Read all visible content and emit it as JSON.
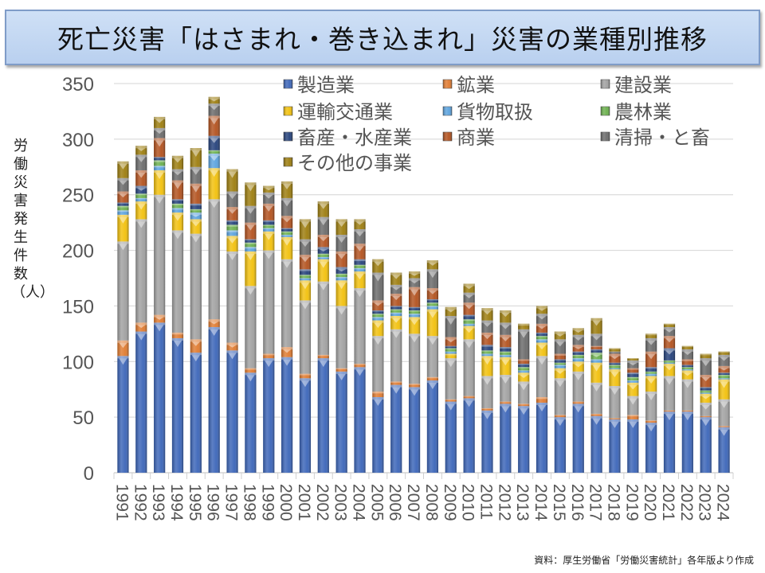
{
  "title": "死亡災害「はさまれ・巻き込まれ」災害の業種別推移",
  "source": "資料：厚生労働省「労働災害統計」各年版より作成",
  "chart_data": {
    "type": "bar",
    "stacked": true,
    "title": "死亡災害「はさまれ・巻き込まれ」災害の業種別推移",
    "xlabel": "",
    "ylabel": "労働災害発生件数（人）",
    "ylim": [
      0,
      350
    ],
    "yticks": [
      0,
      50,
      100,
      150,
      200,
      250,
      300,
      350
    ],
    "grid": true,
    "legend_position": "top-right",
    "categories": [
      "1991",
      "1992",
      "1993",
      "1994",
      "1995",
      "1996",
      "1997",
      "1998",
      "1999",
      "2000",
      "2001",
      "2002",
      "2003",
      "2004",
      "2005",
      "2006",
      "2007",
      "2008",
      "2009",
      "2010",
      "2011",
      "2012",
      "2013",
      "2014",
      "2015",
      "2016",
      "2017",
      "2018",
      "2019",
      "2020",
      "2021",
      "2022",
      "2023",
      "2024"
    ],
    "series": [
      {
        "name": "製造業",
        "color": "#3a64b8",
        "values": [
          105,
          127,
          135,
          121,
          108,
          131,
          110,
          90,
          103,
          104,
          85,
          103,
          91,
          95,
          68,
          79,
          77,
          83,
          64,
          67,
          56,
          62,
          60,
          63,
          50,
          62,
          51,
          48,
          48,
          45,
          55,
          55,
          50,
          41
        ]
      },
      {
        "name": "鉱業",
        "color": "#e07a2e",
        "values": [
          14,
          8,
          7,
          5,
          12,
          7,
          7,
          4,
          4,
          9,
          4,
          3,
          3,
          3,
          5,
          3,
          3,
          3,
          2,
          2,
          2,
          2,
          2,
          5,
          2,
          2,
          2,
          1,
          4,
          2,
          1,
          1,
          1,
          1
        ]
      },
      {
        "name": "建設業",
        "color": "#a0a0a0",
        "values": [
          89,
          93,
          108,
          92,
          95,
          108,
          82,
          74,
          93,
          79,
          66,
          66,
          56,
          68,
          50,
          47,
          45,
          37,
          37,
          51,
          29,
          24,
          20,
          37,
          33,
          27,
          28,
          29,
          17,
          26,
          31,
          28,
          12,
          24
        ]
      },
      {
        "name": "運輸交通業",
        "color": "#f2c00a",
        "values": [
          24,
          16,
          22,
          16,
          13,
          28,
          14,
          31,
          17,
          20,
          18,
          20,
          23,
          15,
          14,
          12,
          15,
          24,
          4,
          12,
          18,
          16,
          8,
          12,
          9,
          9,
          18,
          15,
          12,
          14,
          11,
          8,
          8,
          18
        ]
      },
      {
        "name": "貨物取扱",
        "color": "#5aa2de",
        "values": [
          4,
          3,
          4,
          4,
          6,
          13,
          5,
          4,
          3,
          2,
          2,
          2,
          3,
          3,
          3,
          3,
          3,
          3,
          2,
          2,
          2,
          2,
          2,
          3,
          3,
          3,
          3,
          1,
          2,
          2,
          1,
          1,
          1,
          1
        ]
      },
      {
        "name": "農林業",
        "color": "#6ab04c",
        "values": [
          4,
          4,
          5,
          4,
          3,
          3,
          5,
          4,
          3,
          3,
          3,
          3,
          3,
          3,
          3,
          3,
          3,
          3,
          3,
          4,
          3,
          3,
          3,
          3,
          2,
          3,
          6,
          3,
          3,
          2,
          2,
          2,
          2,
          3
        ]
      },
      {
        "name": "畜産・水産業",
        "color": "#23407a",
        "values": [
          3,
          7,
          3,
          4,
          5,
          13,
          4,
          3,
          4,
          3,
          5,
          6,
          6,
          5,
          3,
          3,
          3,
          3,
          2,
          4,
          5,
          4,
          3,
          3,
          3,
          3,
          3,
          2,
          4,
          4,
          11,
          2,
          3,
          2
        ]
      },
      {
        "name": "商業",
        "color": "#b2501c",
        "values": [
          10,
          14,
          17,
          17,
          18,
          18,
          12,
          15,
          15,
          11,
          13,
          11,
          14,
          14,
          9,
          11,
          18,
          10,
          8,
          11,
          11,
          11,
          4,
          8,
          5,
          6,
          3,
          8,
          4,
          14,
          11,
          5,
          11,
          6
        ]
      },
      {
        "name": "清掃・と畜",
        "color": "#6a6a6a",
        "values": [
          12,
          14,
          9,
          10,
          15,
          11,
          14,
          15,
          10,
          16,
          14,
          16,
          15,
          13,
          25,
          8,
          8,
          17,
          19,
          9,
          11,
          11,
          27,
          9,
          13,
          9,
          11,
          2,
          7,
          12,
          8,
          9,
          15,
          10
        ]
      },
      {
        "name": "その他の事業",
        "color": "#9c7c0c",
        "values": [
          15,
          8,
          10,
          12,
          17,
          6,
          20,
          21,
          6,
          15,
          18,
          14,
          14,
          9,
          12,
          11,
          6,
          8,
          8,
          8,
          11,
          11,
          5,
          7,
          7,
          6,
          14,
          3,
          2,
          4,
          3,
          3,
          4,
          3
        ]
      }
    ]
  }
}
